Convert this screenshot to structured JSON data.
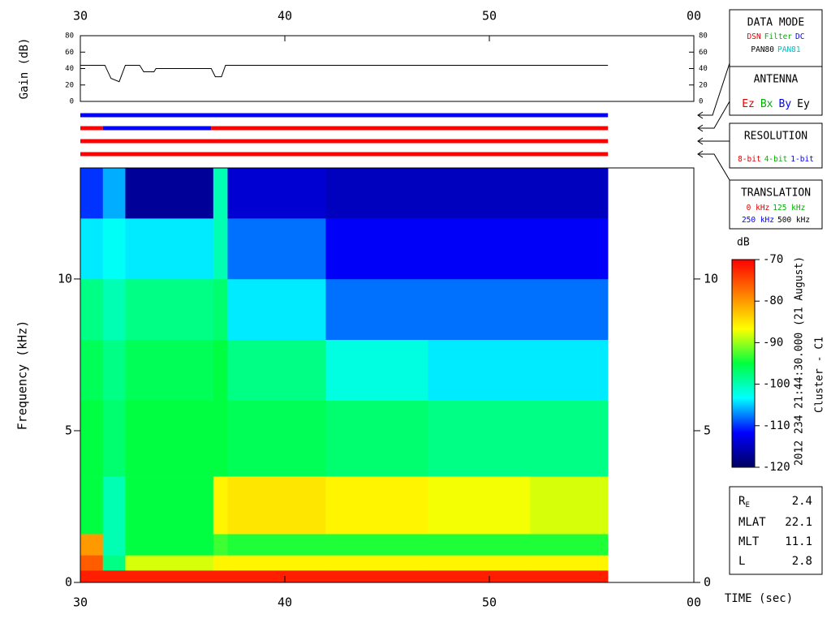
{
  "chart_data": [
    {
      "type": "line",
      "ylabel": "Gain (dB)",
      "color": "#000000",
      "xlim": [
        30,
        60
      ],
      "xticks": [
        30,
        40,
        50,
        {
          "value": 60,
          "label": "00"
        }
      ],
      "ylim": [
        0,
        80
      ],
      "yticks": [
        0,
        20,
        40,
        60,
        80
      ],
      "x": [
        30,
        31.2,
        31.5,
        31.9,
        32.2,
        32.9,
        33.1,
        33.6,
        33.7,
        36.4,
        36.6,
        36.9,
        37.1,
        55.8
      ],
      "values": [
        44,
        44,
        28,
        24,
        44,
        44,
        36,
        36,
        40,
        40,
        30,
        30,
        44,
        44
      ],
      "mode_bars": [
        [
          {
            "start": 30,
            "end": 55.8,
            "color": "#0000ff"
          }
        ],
        [
          {
            "start": 30,
            "end": 31.1,
            "color": "#ff0000"
          },
          {
            "start": 31.1,
            "end": 36.4,
            "color": "#0000ff"
          },
          {
            "start": 36.4,
            "end": 55.8,
            "color": "#ff0000"
          }
        ],
        [
          {
            "start": 30,
            "end": 55.8,
            "color": "#ff0000"
          }
        ],
        [
          {
            "start": 30,
            "end": 55.8,
            "color": "#ff0000"
          }
        ]
      ]
    },
    {
      "type": "heatmap",
      "ylabel": "Frequency (kHz)",
      "xlabel": "TIME (sec)",
      "xlim": [
        30,
        60
      ],
      "xticks": [
        30,
        40,
        50,
        {
          "value": 60,
          "label": "00"
        }
      ],
      "ylim": [
        0,
        13.66
      ],
      "yticks": [
        0,
        5,
        10
      ],
      "x": [
        30,
        31.1,
        32.2,
        36.5,
        37.2,
        42,
        47,
        52,
        55.8
      ],
      "y": [
        0,
        0.4,
        0.9,
        1.6,
        3.5,
        6,
        8,
        10,
        12,
        13.66
      ],
      "values": [
        [
          -72,
          -72,
          -72,
          -72,
          -72,
          -72,
          -72,
          -72
        ],
        [
          -76,
          -98,
          -88,
          -86,
          -86,
          -86,
          -86,
          -86
        ],
        [
          -80,
          -100,
          -95,
          -93,
          -94,
          -94,
          -94,
          -94
        ],
        [
          -95,
          -100,
          -95,
          -86,
          -85,
          -86,
          -87,
          -88
        ],
        [
          -95,
          -97,
          -95,
          -95,
          -96,
          -97,
          -98,
          -98
        ],
        [
          -96,
          -98,
          -96,
          -95,
          -98,
          -102,
          -104,
          -104
        ],
        [
          -98,
          -100,
          -98,
          -97,
          -104,
          -108,
          -108,
          -108
        ],
        [
          -104,
          -103,
          -104,
          -100,
          -108,
          -112,
          -112,
          -112
        ],
        [
          -110,
          -106,
          -117,
          -100,
          -114,
          -115,
          -115,
          -115
        ]
      ],
      "colorbar": {
        "label": "dB",
        "zlim": [
          -120,
          -70
        ],
        "zticks": [
          -70,
          -80,
          -90,
          -100,
          -110,
          -120
        ],
        "colormap": [
          "#000060",
          "#0000ff",
          "#00ffff",
          "#00ff40",
          "#ffff00",
          "#ff8000",
          "#ff0000"
        ]
      }
    }
  ],
  "side_text": [
    "2012 234 21:44:30.000 (21 August)",
    "Cluster - C1"
  ],
  "legend_boxes": [
    {
      "title": "DATA MODE",
      "rows": [
        [
          {
            "text": "DSN",
            "color": "#e00000"
          },
          {
            "text": "Filter",
            "color": "#00b000"
          },
          {
            "text": "DC",
            "color": "#0000ff"
          }
        ],
        [
          {
            "text": "PAN80",
            "color": "#000000"
          },
          {
            "text": "PAN81",
            "color": "#00c0c0"
          }
        ]
      ]
    },
    {
      "title": "ANTENNA",
      "rows": [
        [
          {
            "text": "Ez",
            "color": "#e00000"
          },
          {
            "text": "Bx",
            "color": "#00b000"
          },
          {
            "text": "By",
            "color": "#0000ff"
          },
          {
            "text": "Ey",
            "color": "#000000"
          }
        ]
      ]
    },
    {
      "title": "RESOLUTION",
      "rows": [
        [
          {
            "text": "8-bit",
            "color": "#e00000"
          },
          {
            "text": "4-bit",
            "color": "#00b000"
          },
          {
            "text": "1-bit",
            "color": "#0000ff"
          }
        ]
      ]
    },
    {
      "title": "TRANSLATION",
      "rows": [
        [
          {
            "text": "0 kHz",
            "color": "#e00000"
          },
          {
            "text": "125 kHz",
            "color": "#00b000"
          }
        ],
        [
          {
            "text": "250 kHz",
            "color": "#0000ff"
          },
          {
            "text": "500 kHz",
            "color": "#000000"
          }
        ]
      ]
    }
  ],
  "info": [
    {
      "label": "R",
      "sub": "E",
      "value": 2.4
    },
    {
      "label": "MLAT",
      "value": 22.1
    },
    {
      "label": "MLT",
      "value": 11.1
    },
    {
      "label": "L",
      "value": 2.8
    }
  ]
}
